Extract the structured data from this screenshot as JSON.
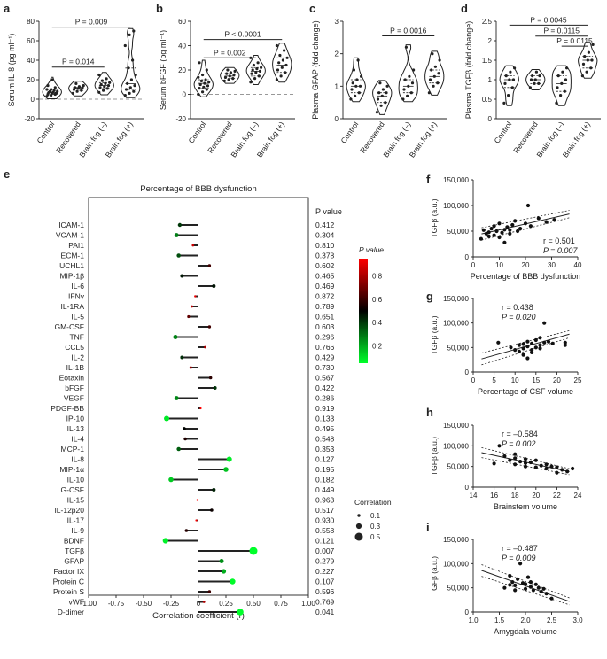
{
  "figure": {
    "panels": {
      "a": "a",
      "b": "b",
      "c": "c",
      "d": "d",
      "e": "e",
      "f": "f",
      "g": "g",
      "h": "h",
      "i": "i"
    }
  },
  "chart_data": [
    {
      "id": "a",
      "type": "violin",
      "ylabel": "Serum IL-8 (pg ml⁻¹)",
      "ylim": [
        -20,
        80
      ],
      "yticks": [
        -20,
        0,
        20,
        40,
        60,
        80
      ],
      "categories": [
        "Control",
        "Recovered",
        "Brain fog (–)",
        "Brain fog (+)"
      ],
      "points": [
        [
          3,
          4,
          5,
          5,
          6,
          6,
          7,
          7,
          8,
          8,
          9,
          10,
          10,
          12,
          14,
          20
        ],
        [
          6,
          8,
          9,
          10,
          11,
          12,
          12,
          13,
          14,
          16
        ],
        [
          7,
          9,
          11,
          12,
          13,
          14,
          15,
          16,
          17,
          19,
          21,
          25
        ],
        [
          4,
          6,
          8,
          10,
          12,
          14,
          16,
          20,
          25,
          32,
          40,
          55,
          66,
          70
        ]
      ],
      "brackets": [
        {
          "from": 0,
          "to": 2,
          "label": "P = 0.014",
          "y": 33
        },
        {
          "from": 0,
          "to": 3,
          "label": "P = 0.009",
          "y": 74
        }
      ]
    },
    {
      "id": "b",
      "type": "violin",
      "ylabel": "Serum bFGF (pg ml⁻¹)",
      "ylim": [
        -20,
        60
      ],
      "yticks": [
        -20,
        0,
        20,
        40,
        60
      ],
      "categories": [
        "Control",
        "Recovered",
        "Brain fog (–)",
        "Brain fog (+)"
      ],
      "points": [
        [
          0,
          2,
          4,
          5,
          6,
          7,
          8,
          9,
          10,
          11,
          12,
          14,
          16,
          20,
          26
        ],
        [
          11,
          12,
          13,
          14,
          15,
          16,
          17,
          18,
          19,
          20
        ],
        [
          10,
          13,
          15,
          17,
          18,
          19,
          20,
          21,
          22,
          24,
          26,
          30
        ],
        [
          12,
          15,
          18,
          20,
          22,
          24,
          26,
          28,
          30,
          32,
          36,
          40
        ]
      ],
      "brackets": [
        {
          "from": 0,
          "to": 2,
          "label": "P = 0.002",
          "y": 30
        },
        {
          "from": 0,
          "to": 3,
          "label": "P < 0.0001",
          "y": 45
        }
      ]
    },
    {
      "id": "c",
      "type": "violin",
      "ylabel": "Plasma GFAP (fold change)",
      "ylim": [
        0,
        3
      ],
      "yticks": [
        0,
        1,
        2,
        3
      ],
      "categories": [
        "Control",
        "Recovered",
        "Brain fog (–)",
        "Brain fog (+)"
      ],
      "points": [
        [
          0.6,
          0.7,
          0.8,
          0.9,
          1.0,
          1.0,
          1.1,
          1.2,
          1.3,
          1.5,
          1.8
        ],
        [
          0.2,
          0.4,
          0.5,
          0.6,
          0.7,
          0.8,
          0.8,
          0.9,
          1.0,
          1.1
        ],
        [
          0.6,
          0.7,
          0.8,
          0.9,
          1.0,
          1.1,
          1.2,
          1.3,
          1.5,
          2.2
        ],
        [
          0.8,
          1.0,
          1.1,
          1.2,
          1.3,
          1.4,
          1.5,
          1.6,
          1.8,
          2.0
        ]
      ],
      "brackets": [
        {
          "from": 1,
          "to": 3,
          "label": "P = 0.0016",
          "y": 2.55
        }
      ]
    },
    {
      "id": "d",
      "type": "violin",
      "ylabel": "Plasma TGFβ (fold change)",
      "ylim": [
        0,
        2.5
      ],
      "yticks": [
        0,
        0.5,
        1.0,
        1.5,
        2.0,
        2.5
      ],
      "categories": [
        "Control",
        "Recovered",
        "Brain fog (–)",
        "Brain fog (+)"
      ],
      "points": [
        [
          0.4,
          0.6,
          0.8,
          0.9,
          1.0,
          1.0,
          1.1,
          1.2,
          1.3
        ],
        [
          0.8,
          0.9,
          0.9,
          1.0,
          1.0,
          1.1,
          1.1,
          1.2
        ],
        [
          0.4,
          0.6,
          0.7,
          0.8,
          0.9,
          1.0,
          1.1,
          1.2,
          1.3
        ],
        [
          1.1,
          1.2,
          1.3,
          1.4,
          1.5,
          1.5,
          1.6,
          1.7,
          1.9
        ]
      ],
      "brackets": [
        {
          "from": 0,
          "to": 3,
          "label": "P = 0.0045",
          "y": 2.4
        },
        {
          "from": 1,
          "to": 3,
          "label": "P = 0.0115",
          "y": 2.12
        },
        {
          "from": 2,
          "to": 3,
          "label": "P = 0.0115",
          "y": 1.86
        }
      ]
    },
    {
      "id": "e",
      "type": "lollipop",
      "title": "Percentage of BBB dysfunction",
      "xlabel": "Correlation coefficient (r)",
      "xlim": [
        -1.0,
        1.0
      ],
      "xticks": [
        "-1.00",
        "-0.75",
        "-0.50",
        "-0.25",
        "0",
        "0.25",
        "0.50",
        "0.75",
        "1.00"
      ],
      "pvalue_header": "P value",
      "colorbar": {
        "title": "P value",
        "ticks": [
          "0.8",
          "0.6",
          "0.4",
          "0.2"
        ]
      },
      "size_legend": {
        "title": "Correlation",
        "items": [
          "0.1",
          "0.3",
          "0.5"
        ]
      },
      "rows": [
        {
          "label": "ICAM-1",
          "r": -0.17,
          "p": "0.412"
        },
        {
          "label": "VCAM-1",
          "r": -0.2,
          "p": "0.304"
        },
        {
          "label": "PAI1",
          "r": -0.05,
          "p": "0.810"
        },
        {
          "label": "ECM-1",
          "r": -0.18,
          "p": "0.378"
        },
        {
          "label": "UCHL1",
          "r": 0.1,
          "p": "0.602"
        },
        {
          "label": "MIP-1β",
          "r": -0.15,
          "p": "0.465"
        },
        {
          "label": "IL-6",
          "r": 0.14,
          "p": "0.469"
        },
        {
          "label": "IFNγ",
          "r": -0.03,
          "p": "0.872"
        },
        {
          "label": "IL-1RA",
          "r": -0.06,
          "p": "0.789"
        },
        {
          "label": "IL-5",
          "r": -0.09,
          "p": "0.651"
        },
        {
          "label": "GM-CSF",
          "r": 0.1,
          "p": "0.603"
        },
        {
          "label": "TNF",
          "r": -0.21,
          "p": "0.296"
        },
        {
          "label": "CCL5",
          "r": 0.06,
          "p": "0.766"
        },
        {
          "label": "IL-2",
          "r": -0.15,
          "p": "0.429"
        },
        {
          "label": "IL-1B",
          "r": -0.07,
          "p": "0.730"
        },
        {
          "label": "Eotaxin",
          "r": 0.11,
          "p": "0.567"
        },
        {
          "label": "bFGF",
          "r": 0.15,
          "p": "0.422"
        },
        {
          "label": "VEGF",
          "r": -0.2,
          "p": "0.286"
        },
        {
          "label": "PDGF-BB",
          "r": 0.02,
          "p": "0.919"
        },
        {
          "label": "IP-10",
          "r": -0.29,
          "p": "0.133"
        },
        {
          "label": "IL-13",
          "r": -0.13,
          "p": "0.495"
        },
        {
          "label": "IL-4",
          "r": -0.12,
          "p": "0.548"
        },
        {
          "label": "MCP-1",
          "r": -0.18,
          "p": "0.353"
        },
        {
          "label": "IL-8",
          "r": 0.28,
          "p": "0.127"
        },
        {
          "label": "MIP-1α",
          "r": 0.25,
          "p": "0.195"
        },
        {
          "label": "IL-10",
          "r": -0.25,
          "p": "0.182"
        },
        {
          "label": "G-CSF",
          "r": 0.14,
          "p": "0.449"
        },
        {
          "label": "IL-15",
          "r": -0.01,
          "p": "0.963"
        },
        {
          "label": "IL-12p20",
          "r": 0.12,
          "p": "0.517"
        },
        {
          "label": "IL-17",
          "r": -0.02,
          "p": "0.930"
        },
        {
          "label": "IL-9",
          "r": -0.11,
          "p": "0.558"
        },
        {
          "label": "BDNF",
          "r": -0.3,
          "p": "0.121"
        },
        {
          "label": "TGFβ",
          "r": 0.5,
          "p": "0.007"
        },
        {
          "label": "GFAP",
          "r": 0.21,
          "p": "0.279"
        },
        {
          "label": "Factor IX",
          "r": 0.23,
          "p": "0.227"
        },
        {
          "label": "Protein C",
          "r": 0.31,
          "p": "0.107"
        },
        {
          "label": "Protein S",
          "r": 0.1,
          "p": "0.596"
        },
        {
          "label": "vWF",
          "r": 0.05,
          "p": "0.769"
        },
        {
          "label": "D-dimer",
          "r": 0.38,
          "p": "0.041"
        }
      ]
    },
    {
      "id": "f",
      "type": "scatter",
      "ylabel": "TGFβ (a.u.)",
      "xlabel": "Percentage of BBB dysfunction",
      "xlim": [
        0,
        40
      ],
      "xticks": [
        0,
        10,
        20,
        30,
        40
      ],
      "ylim": [
        0,
        150000
      ],
      "yticks": [
        "0",
        "50,000",
        "100,000",
        "150,000"
      ],
      "stat_r": "r = 0.501",
      "stat_p": "P = 0.007",
      "fit": {
        "slope": 1150,
        "intercept": 41000
      },
      "points": [
        [
          3,
          35000
        ],
        [
          4,
          52000
        ],
        [
          5,
          45000
        ],
        [
          6,
          48000
        ],
        [
          7,
          55000
        ],
        [
          8,
          42000
        ],
        [
          8,
          60000
        ],
        [
          9,
          50000
        ],
        [
          10,
          38000
        ],
        [
          10,
          65000
        ],
        [
          11,
          47000
        ],
        [
          12,
          53000
        ],
        [
          12,
          28000
        ],
        [
          13,
          58000
        ],
        [
          14,
          45000
        ],
        [
          15,
          62000
        ],
        [
          16,
          70000
        ],
        [
          17,
          50000
        ],
        [
          18,
          55000
        ],
        [
          20,
          65000
        ],
        [
          21,
          100000
        ],
        [
          22,
          60000
        ],
        [
          25,
          75000
        ],
        [
          28,
          68000
        ],
        [
          31,
          72000
        ],
        [
          6,
          40000
        ],
        [
          14,
          52000
        ]
      ]
    },
    {
      "id": "g",
      "type": "scatter",
      "ylabel": "TGFβ (a.u.)",
      "xlabel": "Percentage of CSF volume",
      "xlim": [
        0,
        25
      ],
      "xticks": [
        0,
        5,
        10,
        15,
        20,
        25
      ],
      "ylim": [
        0,
        150000
      ],
      "yticks": [
        "0",
        "50,000",
        "100,000",
        "150,000"
      ],
      "stat_r": "r = 0.438",
      "stat_p": "P = 0.020",
      "fit": {
        "slope": 2400,
        "intercept": 22000
      },
      "points": [
        [
          6,
          60000
        ],
        [
          9,
          50000
        ],
        [
          10,
          45000
        ],
        [
          11,
          42000
        ],
        [
          11,
          55000
        ],
        [
          12,
          48000
        ],
        [
          12,
          35000
        ],
        [
          13,
          52000
        ],
        [
          13,
          62000
        ],
        [
          14,
          40000
        ],
        [
          14,
          58000
        ],
        [
          15,
          50000
        ],
        [
          15,
          65000
        ],
        [
          16,
          70000
        ],
        [
          16,
          55000
        ],
        [
          17,
          100000
        ],
        [
          17,
          60000
        ],
        [
          18,
          62000
        ],
        [
          19,
          58000
        ],
        [
          13,
          28000
        ],
        [
          14,
          45000
        ],
        [
          16,
          48000
        ],
        [
          22,
          60000
        ],
        [
          22,
          55000
        ],
        [
          12,
          57000
        ]
      ]
    },
    {
      "id": "h",
      "type": "scatter",
      "ylabel": "TGFβ (a.u.)",
      "xlabel": "Brainstem volume",
      "xlim": [
        14,
        24
      ],
      "xticks": [
        14,
        16,
        18,
        20,
        22,
        24
      ],
      "ylim": [
        0,
        150000
      ],
      "yticks": [
        "0",
        "50,000",
        "100,000",
        "150,000"
      ],
      "stat_r": "r = –0.584",
      "stat_p": "P = 0.002",
      "fit": {
        "slope": -5500,
        "intercept": 165000
      },
      "points": [
        [
          16,
          57000
        ],
        [
          16.5,
          100000
        ],
        [
          17,
          75000
        ],
        [
          17.5,
          65000
        ],
        [
          18,
          70000
        ],
        [
          18,
          55000
        ],
        [
          18.5,
          62000
        ],
        [
          19,
          58000
        ],
        [
          19,
          50000
        ],
        [
          19.5,
          60000
        ],
        [
          20,
          48000
        ],
        [
          20,
          65000
        ],
        [
          20.5,
          52000
        ],
        [
          21,
          45000
        ],
        [
          21,
          55000
        ],
        [
          21.5,
          50000
        ],
        [
          22,
          35000
        ],
        [
          22,
          48000
        ],
        [
          22.5,
          42000
        ],
        [
          23,
          38000
        ],
        [
          23.5,
          45000
        ],
        [
          18,
          80000
        ],
        [
          19,
          68000
        ]
      ]
    },
    {
      "id": "i",
      "type": "scatter",
      "ylabel": "TGFβ (a.u.)",
      "xlabel": "Amygdala volume",
      "xlim": [
        1.0,
        3.0
      ],
      "xticks": [
        "1.0",
        "1.5",
        "2.0",
        "2.5",
        "3.0"
      ],
      "ylim": [
        0,
        150000
      ],
      "yticks": [
        "0",
        "50,000",
        "100,000",
        "150,000"
      ],
      "stat_r": "r = –0.487",
      "stat_p": "P = 0.009",
      "fit": {
        "slope": -38000,
        "intercept": 130000
      },
      "points": [
        [
          1.6,
          50000
        ],
        [
          1.7,
          75000
        ],
        [
          1.75,
          62000
        ],
        [
          1.8,
          55000
        ],
        [
          1.85,
          68000
        ],
        [
          1.9,
          100000
        ],
        [
          1.95,
          60000
        ],
        [
          2.0,
          48000
        ],
        [
          2.0,
          58000
        ],
        [
          2.05,
          72000
        ],
        [
          2.1,
          52000
        ],
        [
          2.15,
          45000
        ],
        [
          2.2,
          57000
        ],
        [
          2.25,
          50000
        ],
        [
          2.3,
          42000
        ],
        [
          2.35,
          48000
        ],
        [
          2.4,
          38000
        ],
        [
          2.5,
          28000
        ],
        [
          1.8,
          45000
        ],
        [
          2.1,
          62000
        ],
        [
          1.7,
          56000
        ]
      ]
    }
  ]
}
